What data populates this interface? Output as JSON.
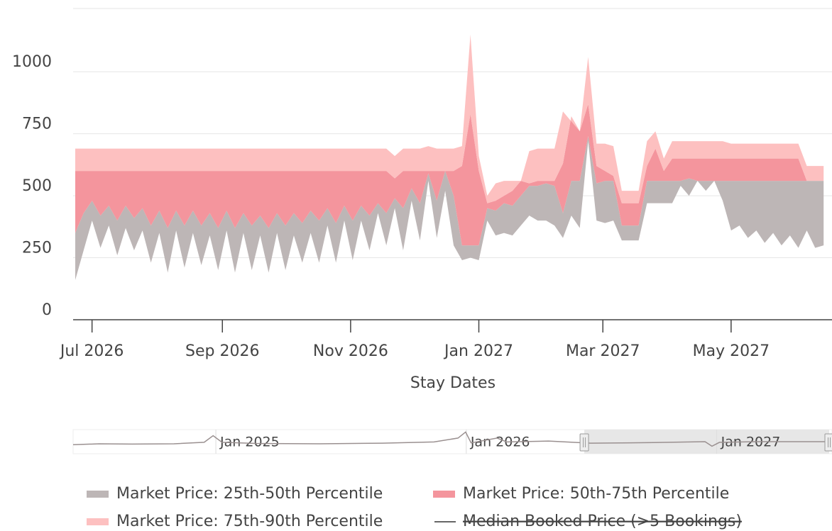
{
  "chart_data": {
    "type": "band",
    "x_label": "Stay Dates",
    "xlim": [
      "2026-06-22",
      "2027-06-18"
    ],
    "xticks": [
      {
        "value": "2026-07-01",
        "label": "Jul 2026"
      },
      {
        "value": "2026-09-01",
        "label": "Sep 2026"
      },
      {
        "value": "2026-11-01",
        "label": "Nov 2026"
      },
      {
        "value": "2027-01-01",
        "label": "Jan 2027"
      },
      {
        "value": "2027-03-01",
        "label": "Mar 2027"
      },
      {
        "value": "2027-05-01",
        "label": "May 2027"
      }
    ],
    "ylim": [
      0,
      1255
    ],
    "yticks": [
      0,
      250,
      500,
      750,
      1000
    ],
    "grid": true,
    "x": [
      "2026-06-23",
      "2026-06-27",
      "2026-07-01",
      "2026-07-05",
      "2026-07-09",
      "2026-07-13",
      "2026-07-17",
      "2026-07-21",
      "2026-07-25",
      "2026-07-29",
      "2026-08-02",
      "2026-08-06",
      "2026-08-10",
      "2026-08-14",
      "2026-08-18",
      "2026-08-22",
      "2026-08-26",
      "2026-08-30",
      "2026-09-03",
      "2026-09-07",
      "2026-09-11",
      "2026-09-15",
      "2026-09-19",
      "2026-09-23",
      "2026-09-27",
      "2026-10-01",
      "2026-10-05",
      "2026-10-09",
      "2026-10-13",
      "2026-10-17",
      "2026-10-21",
      "2026-10-25",
      "2026-10-29",
      "2026-11-02",
      "2026-11-06",
      "2026-11-10",
      "2026-11-14",
      "2026-11-18",
      "2026-11-22",
      "2026-11-26",
      "2026-11-30",
      "2026-12-04",
      "2026-12-08",
      "2026-12-12",
      "2026-12-16",
      "2026-12-20",
      "2026-12-24",
      "2026-12-28",
      "2027-01-01",
      "2027-01-05",
      "2027-01-09",
      "2027-01-13",
      "2027-01-17",
      "2027-01-21",
      "2027-01-25",
      "2027-01-29",
      "2027-02-02",
      "2027-02-06",
      "2027-02-10",
      "2027-02-14",
      "2027-02-18",
      "2027-02-22",
      "2027-02-26",
      "2027-03-02",
      "2027-03-06",
      "2027-03-10",
      "2027-03-14",
      "2027-03-18",
      "2027-03-22",
      "2027-03-26",
      "2027-03-30",
      "2027-04-03",
      "2027-04-07",
      "2027-04-11",
      "2027-04-15",
      "2027-04-19",
      "2027-04-23",
      "2027-04-27",
      "2027-05-01",
      "2027-05-05",
      "2027-05-09",
      "2027-05-13",
      "2027-05-17",
      "2027-05-21",
      "2027-05-25",
      "2027-05-29",
      "2027-06-02",
      "2027-06-06",
      "2027-06-10",
      "2027-06-14"
    ],
    "series": [
      {
        "name": "Market Price: 25th-50th Percentile",
        "color": "#bdb6b6",
        "low": [
          160,
          280,
          400,
          290,
          380,
          260,
          370,
          280,
          360,
          230,
          350,
          190,
          360,
          210,
          350,
          220,
          340,
          200,
          360,
          190,
          350,
          200,
          340,
          190,
          350,
          200,
          340,
          230,
          350,
          230,
          380,
          230,
          400,
          240,
          400,
          280,
          430,
          300,
          450,
          280,
          480,
          320,
          560,
          330,
          520,
          300,
          240,
          250,
          240,
          400,
          340,
          350,
          340,
          380,
          420,
          400,
          400,
          380,
          330,
          420,
          370,
          720,
          400,
          390,
          400,
          320,
          320,
          320,
          470,
          470,
          470,
          470,
          540,
          500,
          560,
          520,
          560,
          480,
          360,
          380,
          330,
          360,
          310,
          350,
          300,
          340,
          290,
          360,
          290,
          300
        ],
        "values": [
          350,
          430,
          480,
          420,
          460,
          400,
          460,
          410,
          450,
          380,
          440,
          370,
          440,
          380,
          440,
          380,
          430,
          370,
          440,
          370,
          430,
          380,
          420,
          370,
          430,
          380,
          430,
          390,
          440,
          400,
          450,
          390,
          460,
          400,
          460,
          420,
          470,
          430,
          490,
          450,
          530,
          470,
          590,
          480,
          600,
          500,
          300,
          300,
          300,
          450,
          440,
          470,
          460,
          500,
          540,
          540,
          550,
          540,
          430,
          560,
          560,
          740,
          550,
          560,
          560,
          380,
          380,
          380,
          560,
          560,
          560,
          560,
          560,
          570,
          560,
          560,
          560,
          560,
          560,
          560,
          560,
          560,
          560,
          560,
          560,
          560,
          560,
          560,
          560,
          560
        ]
      },
      {
        "name": "Market Price: 50th-75th Percentile",
        "color": "#f4959d",
        "values": [
          600,
          600,
          600,
          600,
          600,
          600,
          600,
          600,
          600,
          600,
          600,
          600,
          600,
          600,
          600,
          600,
          600,
          600,
          600,
          600,
          600,
          600,
          600,
          600,
          600,
          600,
          600,
          600,
          600,
          600,
          600,
          600,
          600,
          600,
          600,
          600,
          600,
          600,
          570,
          600,
          600,
          600,
          600,
          600,
          600,
          600,
          620,
          830,
          600,
          470,
          480,
          500,
          520,
          560,
          550,
          560,
          560,
          560,
          630,
          820,
          760,
          870,
          620,
          600,
          580,
          470,
          470,
          470,
          620,
          690,
          600,
          650,
          650,
          650,
          650,
          650,
          650,
          650,
          650,
          650,
          650,
          650,
          650,
          650,
          650,
          650,
          650,
          560,
          560,
          560
        ]
      },
      {
        "name": "Market Price: 75th-90th Percentile",
        "color": "#fdc0c0",
        "values": [
          690,
          690,
          690,
          690,
          690,
          690,
          690,
          690,
          690,
          690,
          690,
          690,
          690,
          690,
          690,
          690,
          690,
          690,
          690,
          690,
          690,
          690,
          690,
          690,
          690,
          690,
          690,
          690,
          690,
          690,
          690,
          690,
          690,
          690,
          690,
          690,
          690,
          690,
          660,
          690,
          690,
          690,
          700,
          690,
          690,
          690,
          700,
          1150,
          660,
          500,
          550,
          560,
          560,
          560,
          680,
          690,
          690,
          690,
          840,
          800,
          760,
          1060,
          710,
          710,
          700,
          520,
          520,
          520,
          720,
          760,
          650,
          720,
          720,
          720,
          720,
          720,
          720,
          720,
          710,
          710,
          710,
          710,
          710,
          710,
          710,
          710,
          710,
          620,
          620,
          620
        ]
      },
      {
        "name": "Median Booked Price (>5 Bookings)",
        "color": "#666666",
        "visible": false
      }
    ],
    "rangeslider": {
      "xlim": [
        "2024-06-07",
        "2027-06-18"
      ],
      "ylim": [
        0,
        800
      ],
      "xticks": [
        {
          "value": "2025-01-01",
          "label": "Jan 2025"
        },
        {
          "value": "2026-01-01",
          "label": "Jan 2026"
        },
        {
          "value": "2027-01-01",
          "label": "Jan 2027"
        }
      ],
      "x": [
        "2024-06-07",
        "2024-07-15",
        "2024-09-01",
        "2024-11-01",
        "2024-12-15",
        "2024-12-28",
        "2025-01-10",
        "2025-03-01",
        "2025-06-01",
        "2025-09-01",
        "2025-11-15",
        "2025-12-20",
        "2025-12-31",
        "2026-01-08",
        "2026-02-15",
        "2026-03-01",
        "2026-05-01",
        "2026-07-01",
        "2026-10-01",
        "2026-12-15",
        "2026-12-25",
        "2027-01-05",
        "2027-03-01",
        "2027-06-15"
      ],
      "values": [
        300,
        330,
        320,
        330,
        380,
        600,
        380,
        340,
        330,
        350,
        390,
        520,
        720,
        360,
        520,
        390,
        420,
        350,
        370,
        400,
        250,
        380,
        400,
        400
      ],
      "color": "#9a9090"
    }
  }
}
